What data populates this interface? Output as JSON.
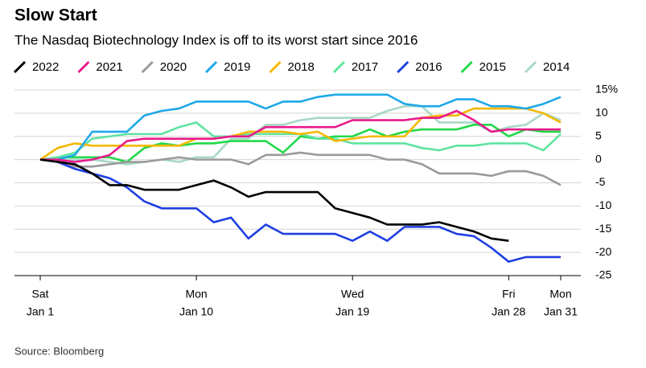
{
  "chart_data": {
    "type": "line",
    "title": "Slow Start",
    "subtitle": "The Nasdaq Biotechnology Index is off to its worst start since 2016",
    "source": "Source: Bloomberg",
    "x": [
      1,
      2,
      3,
      4,
      5,
      6,
      7,
      8,
      9,
      10,
      11,
      12,
      13,
      14,
      15,
      16,
      17,
      18,
      19,
      20,
      21,
      22,
      23,
      24,
      25,
      26,
      27,
      28,
      29,
      30,
      31
    ],
    "xlim": [
      1,
      31
    ],
    "xticks": [
      {
        "value": 1,
        "label": [
          "Sat",
          "Jan 1"
        ]
      },
      {
        "value": 10,
        "label": [
          "Mon",
          "Jan 10"
        ]
      },
      {
        "value": 19,
        "label": [
          "Wed",
          "Jan 19"
        ]
      },
      {
        "value": 28,
        "label": [
          "Fri",
          "Jan 28"
        ]
      },
      {
        "value": 31,
        "label": [
          "Mon",
          "Jan 31"
        ]
      }
    ],
    "ylim": [
      -25,
      15
    ],
    "yticks": [
      {
        "value": 15,
        "label": "15%"
      },
      10,
      5,
      0,
      -5,
      -10,
      -15,
      -20,
      -25
    ],
    "grid": true,
    "series": [
      {
        "name": "2022",
        "color": "#000000",
        "values": [
          0,
          -0.5,
          -1,
          -3,
          -5.5,
          -5.5,
          -6.5,
          -6.5,
          -6.5,
          -5.5,
          -4.5,
          -6,
          -8,
          -7,
          -7,
          -7,
          -7,
          -10.5,
          -11.5,
          -12.5,
          -14,
          -14,
          -14,
          -13.5,
          -14.5,
          -15.5,
          -17,
          -17.5,
          null,
          null,
          null
        ]
      },
      {
        "name": "2021",
        "color": "#e8198b",
        "values": [
          0,
          0,
          -0.5,
          0,
          1,
          4,
          4.5,
          4.5,
          4.5,
          4.5,
          4.5,
          5,
          5,
          7,
          7,
          7,
          7,
          7,
          8.5,
          8.5,
          8.5,
          8.5,
          9,
          9,
          10.5,
          8.5,
          6,
          6.5,
          6.5,
          6.5,
          6.5
        ]
      },
      {
        "name": "2020",
        "color": "#9a9a9a",
        "values": [
          0,
          0,
          -1.5,
          -1.5,
          -1,
          -0.5,
          -0.5,
          0,
          0.5,
          0,
          0,
          0,
          -1,
          1,
          1,
          1.5,
          1,
          1,
          1,
          1,
          0,
          0,
          -1,
          -3,
          -3,
          -3,
          -3.5,
          -2.5,
          -2.5,
          -3.5,
          -5.5
        ]
      },
      {
        "name": "2019",
        "color": "#1ea7e8",
        "values": [
          0,
          0,
          1,
          6,
          6,
          6,
          9.5,
          10.5,
          11,
          12.5,
          12.5,
          12.5,
          12.5,
          11,
          12.5,
          12.5,
          13.5,
          14,
          14,
          14,
          14,
          12,
          11.5,
          11.5,
          13,
          13,
          11.5,
          11.5,
          11,
          12,
          13.5
        ]
      },
      {
        "name": "2018",
        "color": "#f5b800",
        "values": [
          0,
          2.5,
          3.5,
          3,
          3,
          3,
          3,
          3,
          3,
          4.5,
          4.5,
          5,
          6,
          6,
          6,
          5.5,
          6,
          4,
          4.5,
          5,
          5,
          5,
          9,
          9.5,
          9.5,
          11,
          11,
          11,
          11,
          10,
          8
        ]
      },
      {
        "name": "2017",
        "color": "#5fe3a1",
        "values": [
          0,
          0.5,
          1.5,
          4.5,
          5,
          5.5,
          5.5,
          5.5,
          7,
          8,
          5,
          5,
          5.5,
          5.5,
          5.5,
          5.5,
          4.5,
          4.5,
          3.5,
          3.5,
          3.5,
          3.5,
          2.5,
          2,
          3,
          3,
          3.5,
          3.5,
          3.5,
          2,
          5.5
        ]
      },
      {
        "name": "2016",
        "color": "#1f3fe0",
        "values": [
          0,
          -0.5,
          -2,
          -3,
          -4,
          -6,
          -9,
          -10.5,
          -10.5,
          -10.5,
          -13.5,
          -12.5,
          -17,
          -14,
          -16,
          -16,
          -16,
          -16,
          -17.5,
          -15.5,
          -17.5,
          -14.5,
          -14.5,
          -14.5,
          -16,
          -16.5,
          -19,
          -22,
          -21,
          -21,
          -21
        ]
      },
      {
        "name": "2015",
        "color": "#22d94a",
        "values": [
          0,
          0.5,
          0.5,
          0.5,
          0.5,
          -0.5,
          2.5,
          3.5,
          3,
          3.5,
          3.5,
          4,
          4,
          4,
          1.5,
          5,
          4.5,
          5,
          5,
          6.5,
          5,
          6,
          6.5,
          6.5,
          6.5,
          7.5,
          7.5,
          5,
          6.5,
          6,
          6
        ]
      },
      {
        "name": "2014",
        "color": "#a8d8c4",
        "values": [
          0,
          0,
          0,
          0,
          -0.5,
          -1,
          -0.5,
          0,
          -0.5,
          0.5,
          0.5,
          4.5,
          4.5,
          7.5,
          7.5,
          8.5,
          9,
          9,
          9,
          9,
          10.5,
          11.5,
          11.5,
          8,
          8,
          8,
          6,
          7,
          7.5,
          10,
          8.5
        ]
      }
    ]
  }
}
